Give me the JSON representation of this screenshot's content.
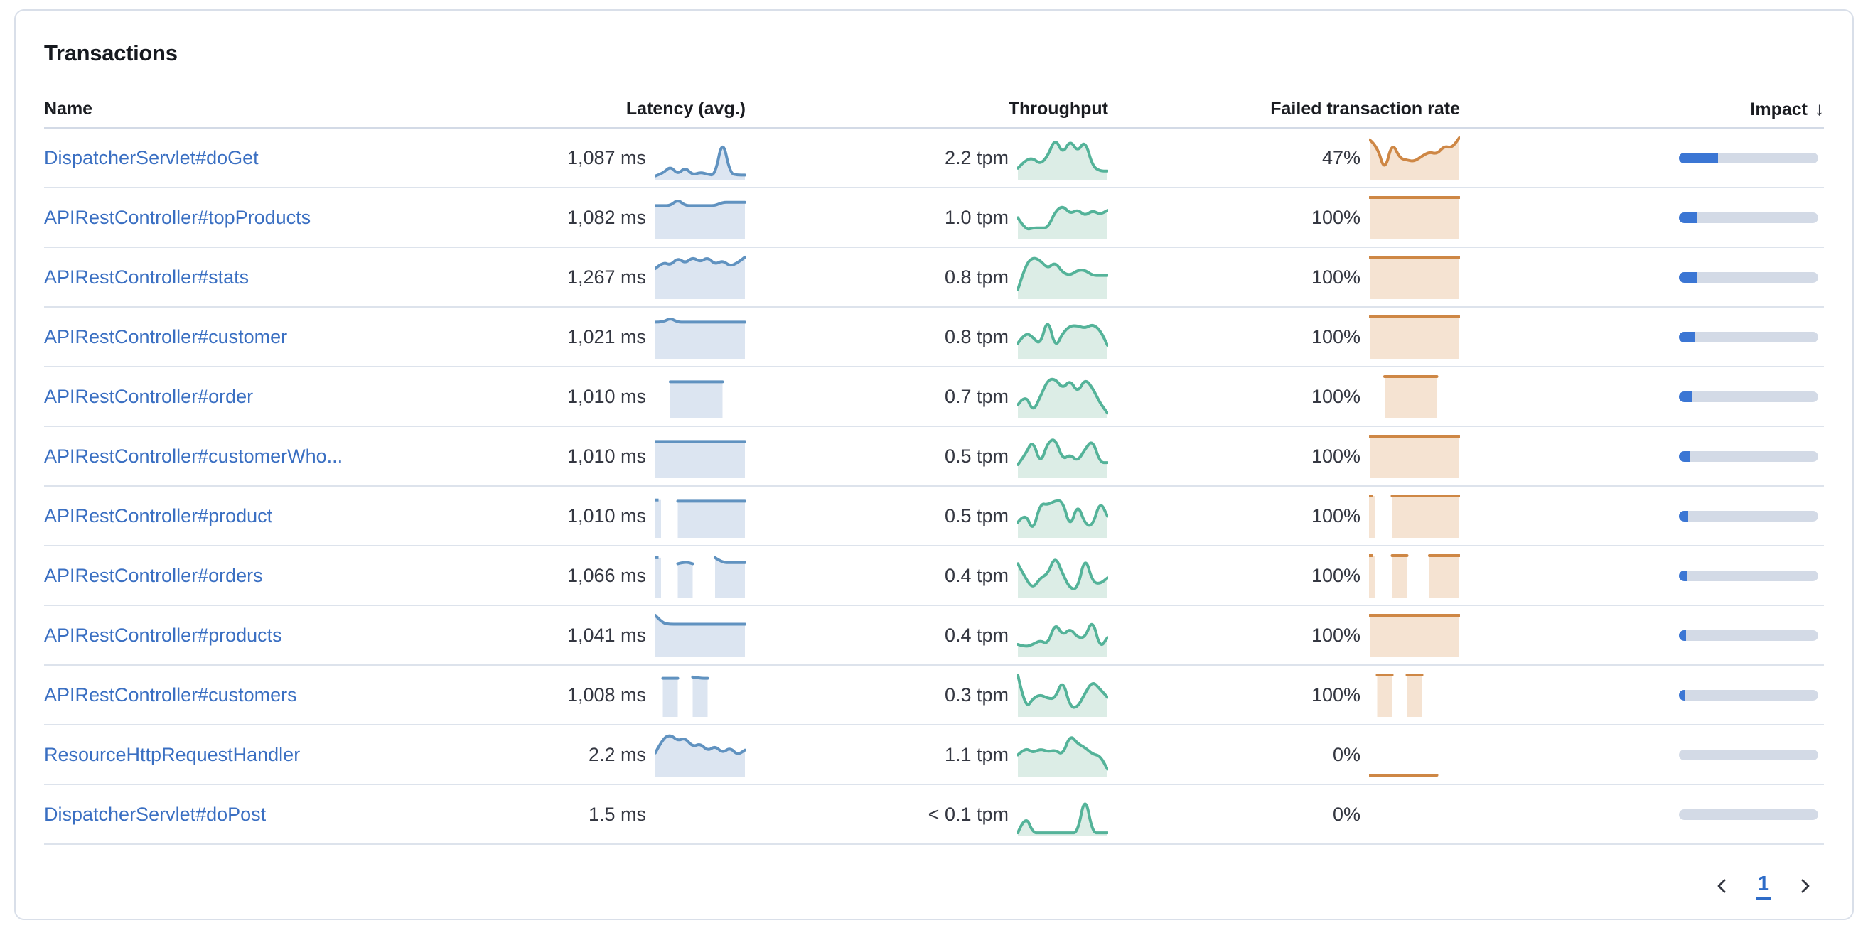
{
  "card": {
    "title": "Transactions"
  },
  "table": {
    "columns": [
      {
        "label": "Name",
        "align": "left"
      },
      {
        "label": "Latency (avg.)",
        "align": "right"
      },
      {
        "label": "Throughput",
        "align": "right"
      },
      {
        "label": "Failed transaction rate",
        "align": "right"
      },
      {
        "label": "Impact",
        "align": "right",
        "sorted": "desc",
        "sort_indicator": "↓"
      }
    ],
    "rows": [
      {
        "name": "DispatcherServlet#doGet",
        "latency": "1,087 ms",
        "throughput": "2.2 tpm",
        "failed_rate": "47%",
        "impact_pct": 28,
        "latency_spark": [
          0.06,
          0.12,
          0.3,
          0.1,
          0.27,
          0.08,
          0.15,
          0.1,
          0.07,
          1.0,
          0.12,
          0.08,
          0.08
        ],
        "throughput_spark": [
          0.25,
          0.45,
          0.5,
          0.35,
          0.55,
          1.0,
          0.6,
          0.95,
          0.65,
          0.95,
          0.3,
          0.18,
          0.18
        ],
        "failed_spark": [
          0.95,
          0.8,
          0.15,
          0.9,
          0.5,
          0.45,
          0.42,
          0.55,
          0.65,
          0.6,
          0.8,
          0.75,
          1.0
        ]
      },
      {
        "name": "APIRestController#topProducts",
        "latency": "1,082 ms",
        "throughput": "1.0 tpm",
        "failed_rate": "100%",
        "impact_pct": 13,
        "latency_spark": [
          0.8,
          0.8,
          0.8,
          0.95,
          0.8,
          0.8,
          0.8,
          0.8,
          0.8,
          0.88,
          0.88,
          0.88,
          0.88
        ],
        "throughput_spark": [
          0.5,
          0.2,
          0.25,
          0.25,
          0.25,
          0.65,
          0.8,
          0.6,
          0.7,
          0.55,
          0.68,
          0.58,
          0.68
        ],
        "failed_spark": [
          1,
          1,
          1,
          1,
          1,
          1,
          1,
          1,
          1,
          1,
          1,
          1,
          1
        ]
      },
      {
        "name": "APIRestController#stats",
        "latency": "1,267 ms",
        "throughput": "0.8 tpm",
        "failed_rate": "100%",
        "impact_pct": 12.5,
        "latency_spark": [
          0.72,
          0.88,
          0.8,
          0.98,
          0.85,
          1.0,
          0.88,
          1.0,
          0.82,
          0.92,
          0.78,
          0.86,
          1.0
        ],
        "throughput_spark": [
          0.2,
          0.8,
          1.0,
          0.92,
          0.72,
          0.88,
          0.62,
          0.55,
          0.68,
          0.68,
          0.55,
          0.55,
          0.55
        ],
        "failed_spark": [
          1,
          1,
          1,
          1,
          1,
          1,
          1,
          1,
          1,
          1,
          1,
          1,
          1
        ]
      },
      {
        "name": "APIRestController#customer",
        "latency": "1,021 ms",
        "throughput": "0.8 tpm",
        "failed_rate": "100%",
        "impact_pct": 11,
        "latency_spark": [
          0.87,
          0.87,
          0.97,
          0.87,
          0.87,
          0.87,
          0.87,
          0.87,
          0.87,
          0.87,
          0.87,
          0.87,
          0.87
        ],
        "throughput_spark": [
          0.35,
          0.62,
          0.5,
          0.3,
          1.0,
          0.22,
          0.6,
          0.78,
          0.78,
          0.72,
          0.82,
          0.68,
          0.3
        ],
        "failed_spark": [
          1,
          1,
          1,
          1,
          1,
          1,
          1,
          1,
          1,
          1,
          1,
          1,
          1
        ]
      },
      {
        "name": "APIRestController#order",
        "latency": "1,010 ms",
        "throughput": "0.7 tpm",
        "failed_rate": "100%",
        "impact_pct": 9,
        "latency_spark": [
          null,
          null,
          0.87,
          0.87,
          0.87,
          0.87,
          0.87,
          0.87,
          0.87,
          0.87,
          null,
          null,
          null
        ],
        "throughput_spark": [
          0.3,
          0.58,
          0.12,
          0.5,
          0.92,
          0.95,
          0.7,
          0.92,
          0.6,
          0.95,
          0.72,
          0.35,
          0.1
        ],
        "failed_spark": [
          null,
          null,
          1,
          1,
          1,
          1,
          1,
          1,
          1,
          1,
          null,
          null,
          null
        ]
      },
      {
        "name": "APIRestController#customerWho...",
        "latency": "1,010 ms",
        "throughput": "0.5 tpm",
        "failed_rate": "100%",
        "impact_pct": 7.5,
        "latency_spark": [
          0.87,
          0.87,
          0.87,
          0.87,
          0.87,
          0.87,
          0.87,
          0.87,
          0.87,
          0.87,
          0.87,
          0.87,
          0.87
        ],
        "throughput_spark": [
          0.3,
          0.55,
          0.92,
          0.3,
          0.85,
          0.95,
          0.42,
          0.55,
          0.38,
          0.68,
          0.92,
          0.35,
          0.35
        ],
        "failed_spark": [
          1,
          1,
          1,
          1,
          1,
          1,
          1,
          1,
          1,
          1,
          1,
          1,
          1
        ]
      },
      {
        "name": "APIRestController#product",
        "latency": "1,010 ms",
        "throughput": "0.5 tpm",
        "failed_rate": "100%",
        "impact_pct": 6.5,
        "latency_spark": [
          0.9,
          null,
          null,
          0.87,
          0.87,
          0.87,
          0.87,
          0.87,
          0.87,
          0.87,
          0.87,
          0.87,
          0.87
        ],
        "throughput_spark": [
          0.35,
          0.6,
          0.1,
          0.82,
          0.78,
          0.88,
          0.88,
          0.2,
          0.82,
          0.3,
          0.25,
          0.88,
          0.5
        ],
        "failed_spark": [
          1,
          null,
          null,
          1,
          1,
          1,
          1,
          1,
          1,
          1,
          1,
          1,
          1
        ]
      },
      {
        "name": "APIRestController#orders",
        "latency": "1,066 ms",
        "throughput": "0.4 tpm",
        "failed_rate": "100%",
        "impact_pct": 6,
        "latency_spark": [
          0.95,
          null,
          null,
          0.8,
          0.85,
          0.8,
          null,
          null,
          0.95,
          0.83,
          0.83,
          0.83,
          0.83
        ],
        "throughput_spark": [
          0.8,
          0.45,
          0.18,
          0.45,
          0.55,
          1.0,
          0.55,
          0.18,
          0.18,
          1.0,
          0.35,
          0.3,
          0.45
        ],
        "failed_spark": [
          1,
          null,
          null,
          1,
          1,
          1,
          null,
          null,
          1,
          1,
          1,
          1,
          1
        ]
      },
      {
        "name": "APIRestController#products",
        "latency": "1,041 ms",
        "throughput": "0.4 tpm",
        "failed_rate": "100%",
        "impact_pct": 5,
        "latency_spark": [
          1.0,
          0.8,
          0.78,
          0.78,
          0.78,
          0.78,
          0.78,
          0.78,
          0.78,
          0.78,
          0.78,
          0.78,
          0.78
        ],
        "throughput_spark": [
          0.28,
          0.22,
          0.28,
          0.38,
          0.28,
          0.82,
          0.5,
          0.68,
          0.45,
          0.45,
          0.92,
          0.18,
          0.45
        ],
        "failed_spark": [
          1,
          1,
          1,
          1,
          1,
          1,
          1,
          1,
          1,
          1,
          1,
          1,
          1
        ]
      },
      {
        "name": "APIRestController#customers",
        "latency": "1,008 ms",
        "throughput": "0.3 tpm",
        "failed_rate": "100%",
        "impact_pct": 4,
        "latency_spark": [
          null,
          0.92,
          0.92,
          0.92,
          null,
          0.95,
          0.92,
          0.92,
          null,
          null,
          null,
          null,
          null
        ],
        "throughput_spark": [
          1.0,
          0.15,
          0.42,
          0.52,
          0.42,
          0.42,
          0.9,
          0.2,
          0.2,
          0.55,
          0.85,
          0.65,
          0.45
        ],
        "failed_spark": [
          null,
          1,
          1,
          1,
          null,
          1,
          1,
          1,
          null,
          null,
          null,
          null,
          null
        ]
      },
      {
        "name": "ResourceHttpRequestHandler",
        "latency": "2.2 ms",
        "throughput": "1.1 tpm",
        "failed_rate": "0%",
        "impact_pct": 0,
        "latency_spark": [
          0.55,
          0.9,
          1.0,
          0.85,
          0.92,
          0.7,
          0.78,
          0.6,
          0.72,
          0.55,
          0.68,
          0.5,
          0.62
        ],
        "throughput_spark": [
          0.5,
          0.68,
          0.55,
          0.65,
          0.58,
          0.62,
          0.5,
          1.0,
          0.78,
          0.68,
          0.52,
          0.48,
          0.15
        ],
        "failed_spark": [
          0,
          0,
          0,
          0,
          0,
          0,
          0,
          0,
          0,
          0,
          null,
          null,
          null
        ]
      },
      {
        "name": "DispatcherServlet#doPost",
        "latency": "1.5 ms",
        "throughput": "< 0.1 tpm",
        "failed_rate": "0%",
        "impact_pct": 0,
        "latency_spark": null,
        "throughput_spark": [
          0.05,
          0.5,
          0.05,
          0.05,
          0.05,
          0.05,
          0.05,
          0.05,
          0.05,
          1.0,
          0.05,
          0.05,
          0.05
        ],
        "failed_spark": null
      }
    ]
  },
  "pagination": {
    "current_page": "1"
  },
  "colors": {
    "latency_line": "#6092C0",
    "latency_fill": "#DCE5F1",
    "throughput_line": "#54B399",
    "throughput_fill": "#DCEDE6",
    "failed_line": "#CE8745",
    "failed_fill": "#F5E3D2",
    "impact_fill": "#3B76D4",
    "impact_track": "#D3DAE6",
    "link": "#3A6FC2"
  }
}
